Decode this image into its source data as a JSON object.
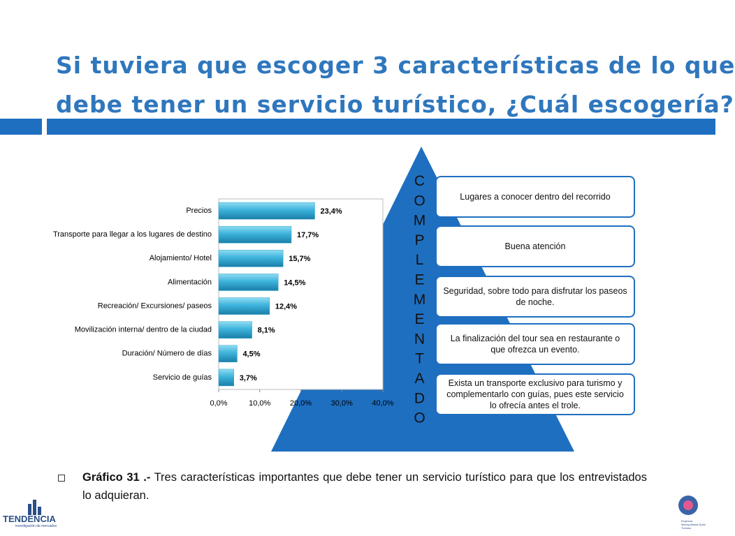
{
  "title": [
    "Si tuviera que escoger 3 características de lo que",
    "debe tener un servicio turístico, ¿Cuál escogería?"
  ],
  "chart_data": {
    "type": "bar",
    "orientation": "horizontal",
    "categories": [
      "Precios",
      "Transporte para llegar a los lugares de destino",
      "Alojamiento/ Hotel",
      "Alimentación",
      "Recreación/ Excursiones/  paseos",
      "Movilización interna/  dentro de la ciudad",
      "Duración/ Número de días",
      "Servicio de guías"
    ],
    "values": [
      23.4,
      17.7,
      15.7,
      14.5,
      12.4,
      8.1,
      4.5,
      3.7
    ],
    "value_labels": [
      "23,4%",
      "17,7%",
      "15,7%",
      "14,5%",
      "12,4%",
      "8,1%",
      "4,5%",
      "3,7%"
    ],
    "color": "#2ea3cc",
    "xlim": [
      0,
      40
    ],
    "xticks": [
      {
        "value": 0,
        "label": "0,0%"
      },
      {
        "value": 10,
        "label": "10,0%"
      },
      {
        "value": 20,
        "label": "20,0%"
      },
      {
        "value": 30,
        "label": "30,0%"
      },
      {
        "value": 40,
        "label": "40,0%"
      }
    ],
    "grid": false
  },
  "diagram": {
    "side_label": "COMPLEMENTADO",
    "boxes": [
      "Lugares a conocer dentro del recorrido",
      "Buena atención",
      "Seguridad, sobre todo para disfrutar los paseos de noche.",
      "La finalización del tour sea en restaurante o que  ofrezca un evento.",
      "Exista un transporte exclusivo para turismo y complementarlo con guías, pues este servicio lo ofrecía antes el trole."
    ]
  },
  "caption": {
    "label": "Gráfico 31 .-",
    "text": " Tres características importantes que debe tener un servicio turístico para que los entrevistados lo adquieran."
  },
  "logos": {
    "left": "TENDENCIA",
    "left_sub": "investigación de mercados",
    "right_sub": "Empresa Metropolitana Quito Turismo"
  }
}
